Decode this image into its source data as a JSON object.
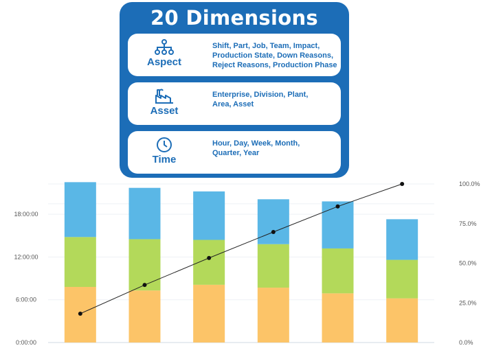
{
  "panel": {
    "title": "20 Dimensions",
    "cards": [
      {
        "label": "Aspect",
        "icon": "hierarchy-icon",
        "lines": [
          "Shift, Part, Job, Team, Impact,",
          "Production State, Down Reasons,",
          "Reject Reasons, Production Phase"
        ]
      },
      {
        "label": "Asset",
        "icon": "factory-icon",
        "lines": [
          "Enterprise, Division, Plant,",
          "Area, Asset"
        ]
      },
      {
        "label": "Time",
        "icon": "clock-icon",
        "lines": [
          "Hour, Day, Week, Month,",
          "Quarter, Year"
        ]
      }
    ]
  },
  "colors": {
    "panel": "#1c6db7",
    "bottom": "#fcc468",
    "middle": "#b3d95a",
    "top": "#5ab7e6",
    "line": "#222222"
  },
  "chart_data": {
    "type": "bar",
    "stacked": true,
    "categories": [
      "",
      "",
      "",
      "",
      "",
      ""
    ],
    "y_ticks": [
      "0:00:00",
      "6:00:00",
      "12:00:00",
      "18:00:00"
    ],
    "y_tick_hours": [
      0,
      6,
      12,
      18
    ],
    "y2_ticks": [
      "0.0%",
      "25.0%",
      "50.0%",
      "75.0%",
      "100.0%"
    ],
    "y2_tick_values": [
      0,
      25,
      50,
      75,
      100
    ],
    "ylim_hours": [
      0,
      23.5
    ],
    "y2lim": [
      0,
      100
    ],
    "series": [
      {
        "values": [
          7.8,
          7.3,
          8.1,
          7.7,
          6.9,
          6.2
        ]
      },
      {
        "values": [
          7.0,
          7.2,
          6.3,
          6.1,
          6.3,
          5.4
        ]
      },
      {
        "values": [
          7.7,
          7.2,
          6.8,
          6.3,
          6.6,
          5.7
        ]
      }
    ],
    "cumulative_percent": [
      18.2,
      36.3,
      53.3,
      69.7,
      85.8,
      100.0
    ],
    "grid": true
  }
}
